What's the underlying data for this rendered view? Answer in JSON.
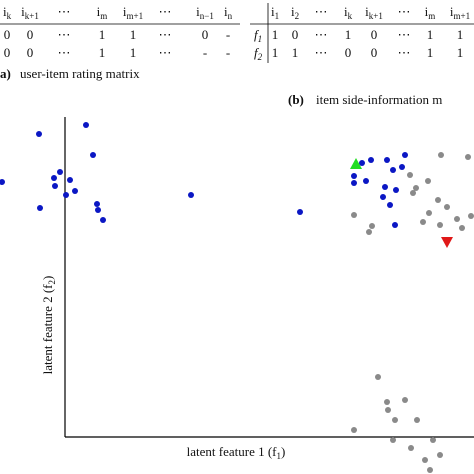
{
  "table_a": {
    "header": [
      {
        "base": "i",
        "sub": "k"
      },
      {
        "base": "i",
        "sub": "k+1"
      },
      {
        "base": "⋯"
      },
      {
        "base": "i",
        "sub": "m"
      },
      {
        "base": "i",
        "sub": "m+1"
      },
      {
        "base": "⋯"
      },
      {
        "base": "i",
        "sub": "n−1"
      },
      {
        "base": "i",
        "sub": "n"
      }
    ],
    "rows": [
      [
        "0",
        "0",
        "⋯",
        "1",
        "1",
        "⋯",
        "0",
        "-"
      ],
      [
        "0",
        "0",
        "⋯",
        "1",
        "1",
        "⋯",
        "-",
        "-"
      ]
    ],
    "caption_label": "a)",
    "caption": "user-item rating matrix"
  },
  "table_b": {
    "header": [
      {
        "base": "i",
        "sub": "1"
      },
      {
        "base": "i",
        "sub": "2"
      },
      {
        "base": "⋯"
      },
      {
        "base": "i",
        "sub": "k"
      },
      {
        "base": "i",
        "sub": "k+1"
      },
      {
        "base": "⋯"
      },
      {
        "base": "i",
        "sub": "m"
      },
      {
        "base": "i",
        "sub": "m+1"
      }
    ],
    "row_labels": [
      {
        "base": "f",
        "sub": "1"
      },
      {
        "base": "f",
        "sub": "2"
      }
    ],
    "rows": [
      [
        "1",
        "0",
        "⋯",
        "1",
        "0",
        "⋯",
        "1",
        "1"
      ],
      [
        "1",
        "1",
        "⋯",
        "0",
        "0",
        "⋯",
        "1",
        "1"
      ]
    ],
    "caption_label": "(b)",
    "caption": "item side-information m"
  },
  "plot": {
    "x_label": {
      "base": "latent feature 1 (f",
      "sub": "1",
      "end": ")"
    },
    "y_label": {
      "base": "latent feature 2 (f",
      "sub": "2",
      "end": ")"
    }
  }
}
